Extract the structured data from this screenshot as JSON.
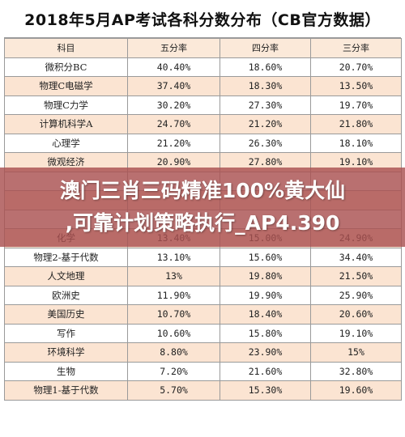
{
  "title": "2018年5月AP考试各科分数分布（CB官方数据）",
  "headers": [
    "科目",
    "五分率",
    "四分率",
    "三分率"
  ],
  "rows": [
    {
      "subject": "微积分BC",
      "five": "40.40%",
      "four": "18.60%",
      "three": "20.70%"
    },
    {
      "subject": "物理C电磁学",
      "five": "37.40%",
      "four": "18.30%",
      "three": "13.50%"
    },
    {
      "subject": "物理C力学",
      "five": "30.20%",
      "four": "27.30%",
      "three": "19.70%"
    },
    {
      "subject": "计算机科学A",
      "five": "24.70%",
      "four": "21.20%",
      "three": "21.80%"
    },
    {
      "subject": "心理学",
      "five": "21.20%",
      "four": "26.30%",
      "three": "18.10%"
    },
    {
      "subject": "微观经济",
      "five": "20.90%",
      "four": "27.80%",
      "three": "19.10%"
    },
    {
      "subject": "",
      "five": "",
      "four": "",
      "three": ""
    },
    {
      "subject": "",
      "five": "",
      "four": "",
      "three": ""
    },
    {
      "subject": "",
      "five": "",
      "four": "",
      "three": ""
    },
    {
      "subject": "化学",
      "five": "13.40%",
      "four": "15.00%",
      "three": "24.90%"
    },
    {
      "subject": "物理2-基于代数",
      "five": "13.10%",
      "four": "15.60%",
      "three": "34.40%"
    },
    {
      "subject": "人文地理",
      "five": "13%",
      "four": "19.80%",
      "three": "21.50%"
    },
    {
      "subject": "欧洲史",
      "five": "11.90%",
      "four": "19.90%",
      "three": "25.90%"
    },
    {
      "subject": "美国历史",
      "five": "10.70%",
      "four": "18.40%",
      "three": "20.60%"
    },
    {
      "subject": "写作",
      "five": "10.60%",
      "four": "15.80%",
      "three": "19.10%"
    },
    {
      "subject": "环境科学",
      "five": "8.80%",
      "four": "23.90%",
      "three": "15%"
    },
    {
      "subject": "生物",
      "five": "7.20%",
      "four": "21.60%",
      "three": "32.80%"
    },
    {
      "subject": "物理1-基于代数",
      "five": "5.70%",
      "four": "15.30%",
      "three": "19.60%"
    }
  ],
  "overlay": {
    "line1": "澳门三肖三码精准100%黄大仙",
    "line2": ",可靠计划策略执行_AP4.390"
  },
  "colors": {
    "header_band": "#fbe9d9",
    "row_band": "#fbe4d2",
    "overlay": "#aa5050",
    "grid_line": "#9a9a9a"
  }
}
